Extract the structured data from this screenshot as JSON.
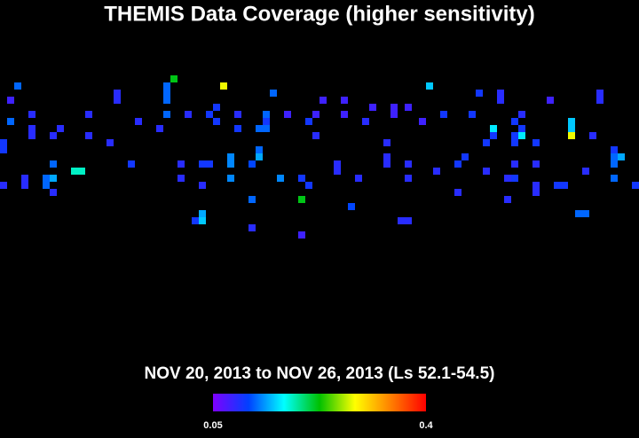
{
  "chart_data": {
    "type": "heatmap",
    "title": "THEMIS Data Coverage (higher sensitivity)",
    "subtitle": "NOV 20, 2013 to NOV 26, 2013 (Ls 52.1-54.5)",
    "colorscale": [
      "#7f00ff",
      "#0040ff",
      "#00ffff",
      "#00c000",
      "#ffff00",
      "#ff8000",
      "#ff0000"
    ],
    "zlim": [
      0.05,
      0.4
    ],
    "zticks": [
      0.05,
      0.4
    ],
    "cells": [
      [
        2,
        1,
        0.12
      ],
      [
        16,
        2,
        0.09
      ],
      [
        23,
        1,
        0.12
      ],
      [
        24,
        0,
        0.22
      ],
      [
        31,
        1,
        0.28
      ],
      [
        38,
        2,
        0.12
      ],
      [
        60,
        1,
        0.15
      ],
      [
        67,
        2,
        0.1
      ],
      [
        70,
        2,
        0.09
      ],
      [
        84,
        2,
        0.09
      ],
      [
        1,
        3,
        0.08
      ],
      [
        16,
        3,
        0.09
      ],
      [
        23,
        2,
        0.12
      ],
      [
        23,
        3,
        0.12
      ],
      [
        45,
        3,
        0.08
      ],
      [
        48,
        3,
        0.08
      ],
      [
        57,
        4,
        0.08
      ],
      [
        70,
        3,
        0.09
      ],
      [
        77,
        3,
        0.08
      ],
      [
        84,
        3,
        0.09
      ],
      [
        4,
        5,
        0.09
      ],
      [
        12,
        5,
        0.09
      ],
      [
        23,
        5,
        0.12
      ],
      [
        26,
        5,
        0.09
      ],
      [
        29,
        5,
        0.1
      ],
      [
        30,
        4,
        0.1
      ],
      [
        33,
        5,
        0.09
      ],
      [
        37,
        5,
        0.12
      ],
      [
        40,
        5,
        0.08
      ],
      [
        44,
        5,
        0.08
      ],
      [
        48,
        5,
        0.08
      ],
      [
        52,
        4,
        0.08
      ],
      [
        55,
        4,
        0.08
      ],
      [
        59,
        6,
        0.08
      ],
      [
        62,
        5,
        0.1
      ],
      [
        66,
        5,
        0.1
      ],
      [
        73,
        5,
        0.09
      ],
      [
        1,
        6,
        0.12
      ],
      [
        19,
        6,
        0.09
      ],
      [
        30,
        6,
        0.1
      ],
      [
        37,
        6,
        0.1
      ],
      [
        43,
        6,
        0.1
      ],
      [
        51,
        6,
        0.09
      ],
      [
        55,
        5,
        0.08
      ],
      [
        69,
        7,
        0.16
      ],
      [
        72,
        6,
        0.1
      ],
      [
        80,
        6,
        0.15
      ],
      [
        73,
        7,
        0.1
      ],
      [
        4,
        7,
        0.09
      ],
      [
        4,
        8,
        0.09
      ],
      [
        8,
        7,
        0.09
      ],
      [
        7,
        8,
        0.09
      ],
      [
        12,
        8,
        0.09
      ],
      [
        22,
        7,
        0.09
      ],
      [
        33,
        7,
        0.1
      ],
      [
        36,
        7,
        0.12
      ],
      [
        37,
        7,
        0.12
      ],
      [
        44,
        8,
        0.09
      ],
      [
        73,
        8,
        0.16
      ],
      [
        72,
        8,
        0.1
      ],
      [
        80,
        8,
        0.28
      ],
      [
        83,
        8,
        0.09
      ],
      [
        69,
        8,
        0.1
      ],
      [
        15,
        9,
        0.09
      ],
      [
        0,
        9,
        0.1
      ],
      [
        0,
        10,
        0.1
      ],
      [
        36,
        10,
        0.12
      ],
      [
        68,
        9,
        0.1
      ],
      [
        72,
        9,
        0.1
      ],
      [
        75,
        9,
        0.1
      ],
      [
        80,
        7,
        0.15
      ],
      [
        54,
        9,
        0.09
      ],
      [
        86,
        10,
        0.1
      ],
      [
        7,
        12,
        0.12
      ],
      [
        10,
        13,
        0.18
      ],
      [
        11,
        13,
        0.18
      ],
      [
        18,
        12,
        0.1
      ],
      [
        25,
        12,
        0.09
      ],
      [
        28,
        12,
        0.1
      ],
      [
        29,
        12,
        0.1
      ],
      [
        32,
        11,
        0.13
      ],
      [
        32,
        12,
        0.13
      ],
      [
        35,
        12,
        0.11
      ],
      [
        36,
        11,
        0.14
      ],
      [
        47,
        12,
        0.09
      ],
      [
        54,
        11,
        0.09
      ],
      [
        54,
        12,
        0.09
      ],
      [
        57,
        12,
        0.09
      ],
      [
        64,
        12,
        0.1
      ],
      [
        65,
        11,
        0.1
      ],
      [
        72,
        12,
        0.09
      ],
      [
        75,
        12,
        0.09
      ],
      [
        86,
        11,
        0.12
      ],
      [
        87,
        11,
        0.14
      ],
      [
        82,
        13,
        0.09
      ],
      [
        86,
        12,
        0.12
      ],
      [
        68,
        13,
        0.09
      ],
      [
        61,
        13,
        0.09
      ],
      [
        0,
        15,
        0.09
      ],
      [
        3,
        14,
        0.09
      ],
      [
        6,
        14,
        0.12
      ],
      [
        7,
        14,
        0.14
      ],
      [
        25,
        14,
        0.09
      ],
      [
        32,
        14,
        0.13
      ],
      [
        39,
        14,
        0.13
      ],
      [
        42,
        14,
        0.1
      ],
      [
        50,
        14,
        0.09
      ],
      [
        57,
        14,
        0.09
      ],
      [
        71,
        14,
        0.09
      ],
      [
        72,
        14,
        0.1
      ],
      [
        75,
        15,
        0.09
      ],
      [
        78,
        15,
        0.1
      ],
      [
        79,
        15,
        0.1
      ],
      [
        86,
        14,
        0.12
      ],
      [
        89,
        15,
        0.1
      ],
      [
        43,
        15,
        0.1
      ],
      [
        47,
        13,
        0.09
      ],
      [
        3,
        15,
        0.09
      ],
      [
        6,
        15,
        0.12
      ],
      [
        7,
        16,
        0.09
      ],
      [
        28,
        15,
        0.09
      ],
      [
        35,
        17,
        0.12
      ],
      [
        42,
        17,
        0.22
      ],
      [
        64,
        16,
        0.09
      ],
      [
        71,
        17,
        0.09
      ],
      [
        75,
        16,
        0.09
      ],
      [
        49,
        18,
        0.11
      ],
      [
        28,
        19,
        0.14
      ],
      [
        27,
        20,
        0.1
      ],
      [
        28,
        20,
        0.15
      ],
      [
        56,
        20,
        0.09
      ],
      [
        57,
        20,
        0.09
      ],
      [
        81,
        19,
        0.12
      ],
      [
        82,
        19,
        0.12
      ],
      [
        35,
        21,
        0.09
      ],
      [
        42,
        22,
        0.08
      ]
    ]
  }
}
